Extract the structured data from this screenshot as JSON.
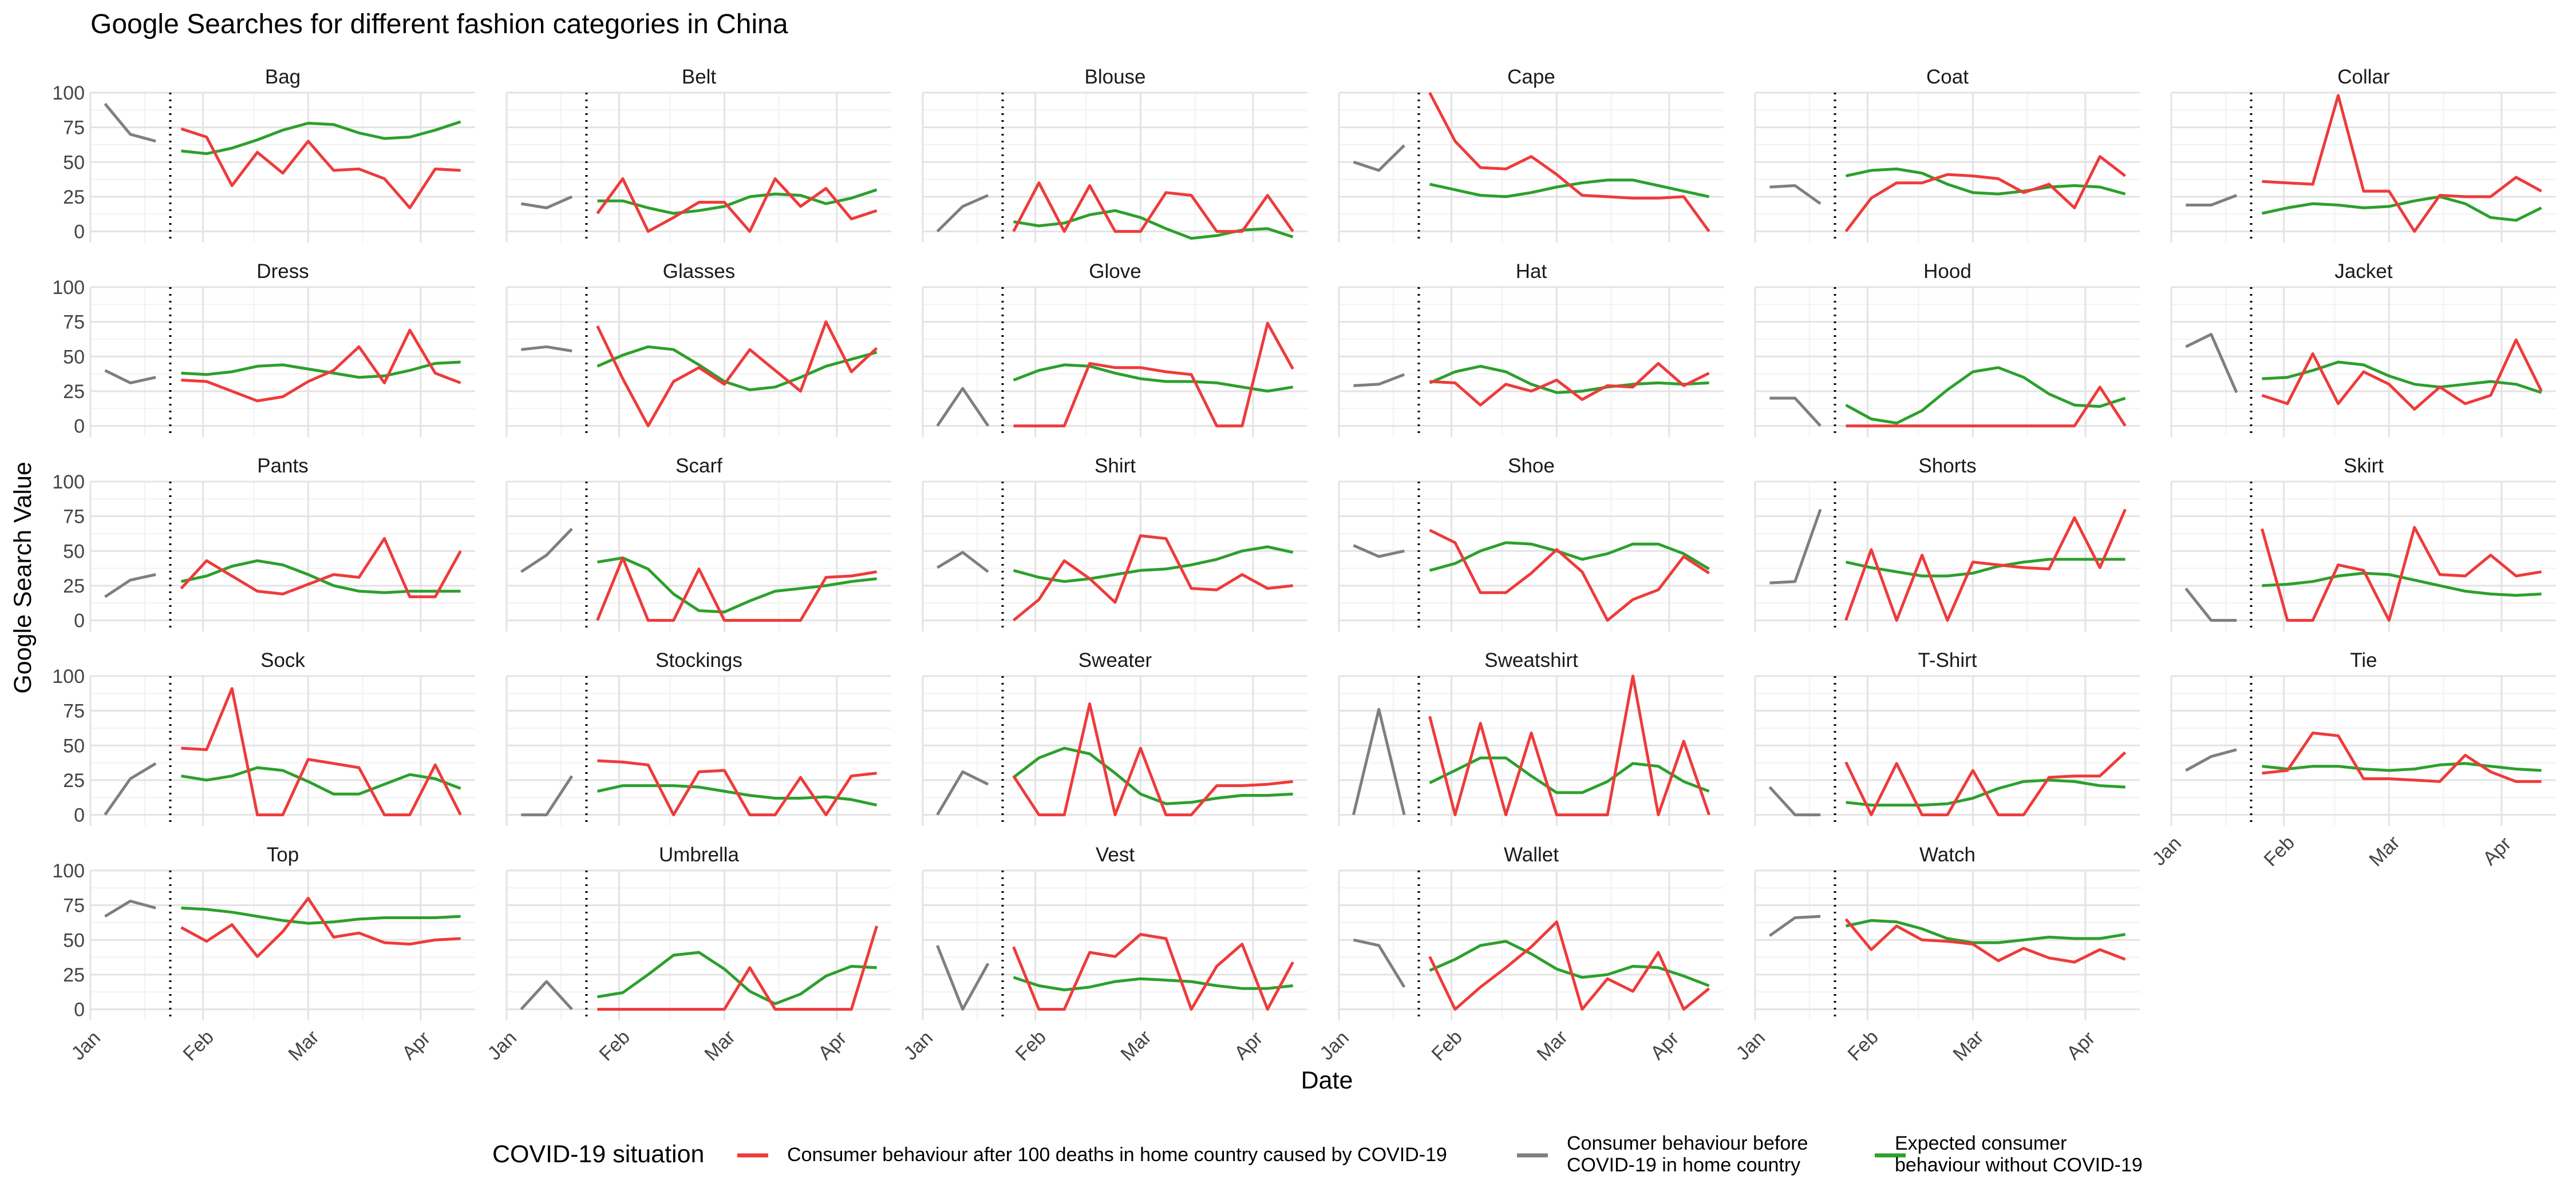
{
  "chart_data": {
    "type": "line",
    "title": "Google Searches for different fashion categories in China",
    "xlabel": "Date",
    "ylabel": "Google Search Value",
    "ylim": [
      -8,
      100
    ],
    "y_ticks": [
      "0",
      "25",
      "50",
      "75",
      "100"
    ],
    "x_ticks": [
      "Jan",
      "Feb",
      "Mar",
      "Apr"
    ],
    "grid": true,
    "legend_position": "bottom",
    "legend_title": "COVID-19 situation",
    "legend_items": [
      {
        "label": "Consumer behaviour after 100 deaths in home country caused by COVID-19",
        "color": "#EE3B3B"
      },
      {
        "label": "Consumer behaviour before\nCOVID-19 in home country",
        "color": "#7F7F7F"
      },
      {
        "label": "Expected consumer\nbehaviour without COVID-19",
        "color": "#2CA02C"
      }
    ],
    "colors": {
      "after": "#EE3B3B",
      "before": "#7F7F7F",
      "expected": "#2CA02C"
    },
    "pre_dates": [
      "2020-01-05",
      "2020-01-12",
      "2020-01-19"
    ],
    "event_date": "2020-01-23",
    "post_dates": [
      "2020-01-26",
      "2020-02-02",
      "2020-02-09",
      "2020-02-16",
      "2020-02-23",
      "2020-03-01",
      "2020-03-08",
      "2020-03-15",
      "2020-03-22",
      "2020-03-29",
      "2020-04-05",
      "2020-04-12"
    ],
    "panels": [
      {
        "name": "Bag",
        "before": [
          92,
          70,
          65
        ],
        "after": [
          74,
          68,
          33,
          57,
          42,
          65,
          44,
          45,
          38,
          17,
          45,
          44
        ],
        "expected": [
          58,
          56,
          60,
          66,
          73,
          78,
          77,
          71,
          67,
          68,
          73,
          79
        ]
      },
      {
        "name": "Belt",
        "before": [
          20,
          17,
          25
        ],
        "after": [
          13,
          38,
          0,
          10,
          21,
          21,
          0,
          38,
          18,
          31,
          9,
          15
        ],
        "expected": [
          22,
          22,
          17,
          13,
          15,
          18,
          25,
          27,
          26,
          20,
          24,
          30
        ]
      },
      {
        "name": "Blouse",
        "before": [
          0,
          18,
          26
        ],
        "after": [
          0,
          35,
          0,
          33,
          0,
          0,
          28,
          26,
          0,
          0,
          26,
          0
        ],
        "expected": [
          7,
          4,
          6,
          12,
          15,
          10,
          2,
          -5,
          -3,
          1,
          2,
          -4
        ]
      },
      {
        "name": "Cape",
        "before": [
          50,
          44,
          62
        ],
        "after": [
          100,
          65,
          46,
          45,
          54,
          41,
          26,
          25,
          24,
          24,
          25,
          0
        ],
        "expected": [
          34,
          30,
          26,
          25,
          28,
          32,
          35,
          37,
          37,
          33,
          29,
          25
        ]
      },
      {
        "name": "Coat",
        "before": [
          32,
          33,
          20
        ],
        "after": [
          0,
          24,
          35,
          35,
          41,
          40,
          38,
          28,
          34,
          17,
          54,
          40
        ],
        "expected": [
          40,
          44,
          45,
          42,
          34,
          28,
          27,
          29,
          32,
          33,
          32,
          27
        ]
      },
      {
        "name": "Collar",
        "before": [
          19,
          19,
          26
        ],
        "after": [
          36,
          35,
          34,
          98,
          29,
          29,
          0,
          26,
          25,
          25,
          39,
          29
        ],
        "expected": [
          13,
          17,
          20,
          19,
          17,
          18,
          22,
          25,
          20,
          10,
          8,
          17
        ]
      },
      {
        "name": "Dress",
        "before": [
          40,
          31,
          35
        ],
        "after": [
          33,
          32,
          25,
          18,
          21,
          32,
          40,
          57,
          31,
          69,
          38,
          31
        ],
        "expected": [
          38,
          37,
          39,
          43,
          44,
          41,
          38,
          35,
          36,
          40,
          45,
          46
        ]
      },
      {
        "name": "Glasses",
        "before": [
          55,
          57,
          54
        ],
        "after": [
          72,
          34,
          0,
          32,
          42,
          30,
          55,
          40,
          25,
          75,
          39,
          56
        ],
        "expected": [
          43,
          51,
          57,
          55,
          44,
          32,
          26,
          28,
          35,
          43,
          48,
          53
        ]
      },
      {
        "name": "Glove",
        "before": [
          0,
          27,
          0
        ],
        "after": [
          0,
          0,
          0,
          45,
          42,
          42,
          39,
          37,
          0,
          0,
          74,
          41
        ],
        "expected": [
          33,
          40,
          44,
          43,
          38,
          34,
          32,
          32,
          31,
          28,
          25,
          28
        ]
      },
      {
        "name": "Hat",
        "before": [
          29,
          30,
          37
        ],
        "after": [
          32,
          31,
          15,
          30,
          25,
          33,
          19,
          29,
          28,
          45,
          29,
          38
        ],
        "expected": [
          31,
          39,
          43,
          39,
          30,
          24,
          25,
          28,
          30,
          31,
          30,
          31
        ]
      },
      {
        "name": "Hood",
        "before": [
          20,
          20,
          0
        ],
        "after": [
          0,
          0,
          0,
          0,
          0,
          0,
          0,
          0,
          0,
          0,
          28,
          0
        ],
        "expected": [
          15,
          5,
          2,
          11,
          26,
          39,
          42,
          35,
          23,
          15,
          14,
          20
        ]
      },
      {
        "name": "Jacket",
        "before": [
          57,
          66,
          24
        ],
        "after": [
          22,
          16,
          52,
          16,
          39,
          30,
          12,
          28,
          16,
          22,
          62,
          25
        ],
        "expected": [
          34,
          35,
          40,
          46,
          44,
          36,
          30,
          28,
          30,
          32,
          30,
          24
        ]
      },
      {
        "name": "Pants",
        "before": [
          17,
          29,
          33
        ],
        "after": [
          23,
          43,
          32,
          21,
          19,
          26,
          33,
          31,
          59,
          17,
          17,
          50
        ],
        "expected": [
          28,
          32,
          39,
          43,
          40,
          33,
          25,
          21,
          20,
          21,
          21,
          21
        ]
      },
      {
        "name": "Scarf",
        "before": [
          35,
          47,
          66
        ],
        "after": [
          0,
          45,
          0,
          0,
          37,
          0,
          0,
          0,
          0,
          31,
          32,
          35
        ],
        "expected": [
          42,
          45,
          37,
          19,
          7,
          6,
          14,
          21,
          23,
          25,
          28,
          30
        ]
      },
      {
        "name": "Shirt",
        "before": [
          38,
          49,
          35
        ],
        "after": [
          0,
          15,
          43,
          30,
          13,
          61,
          59,
          23,
          22,
          33,
          23,
          25
        ],
        "expected": [
          36,
          31,
          28,
          30,
          33,
          36,
          37,
          40,
          44,
          50,
          53,
          49
        ]
      },
      {
        "name": "Shoe",
        "before": [
          54,
          46,
          50
        ],
        "after": [
          65,
          56,
          20,
          20,
          34,
          51,
          35,
          0,
          15,
          22,
          46,
          34
        ],
        "expected": [
          36,
          41,
          50,
          56,
          55,
          50,
          44,
          48,
          55,
          55,
          48,
          37
        ]
      },
      {
        "name": "Shorts",
        "before": [
          27,
          28,
          80
        ],
        "after": [
          0,
          51,
          0,
          47,
          0,
          42,
          40,
          38,
          37,
          74,
          38,
          80
        ],
        "expected": [
          42,
          38,
          35,
          32,
          32,
          34,
          39,
          42,
          44,
          44,
          44,
          44
        ]
      },
      {
        "name": "Skirt",
        "before": [
          23,
          0,
          0
        ],
        "after": [
          66,
          0,
          0,
          40,
          36,
          0,
          67,
          33,
          32,
          47,
          32,
          35
        ],
        "expected": [
          25,
          26,
          28,
          32,
          34,
          33,
          29,
          25,
          21,
          19,
          18,
          19
        ]
      },
      {
        "name": "Sock",
        "before": [
          0,
          26,
          37
        ],
        "after": [
          48,
          47,
          91,
          0,
          0,
          40,
          37,
          34,
          0,
          0,
          36,
          0
        ],
        "expected": [
          28,
          25,
          28,
          34,
          32,
          24,
          15,
          15,
          22,
          29,
          26,
          19
        ]
      },
      {
        "name": "Stockings",
        "before": [
          0,
          0,
          28
        ],
        "after": [
          39,
          38,
          36,
          0,
          31,
          32,
          0,
          0,
          27,
          0,
          28,
          30
        ],
        "expected": [
          17,
          21,
          21,
          21,
          20,
          17,
          14,
          12,
          12,
          13,
          11,
          7
        ]
      },
      {
        "name": "Sweater",
        "before": [
          0,
          31,
          22
        ],
        "after": [
          28,
          0,
          0,
          80,
          0,
          48,
          0,
          0,
          21,
          21,
          22,
          24
        ],
        "expected": [
          27,
          41,
          48,
          44,
          30,
          15,
          8,
          9,
          12,
          14,
          14,
          15
        ]
      },
      {
        "name": "Sweatshirt",
        "before": [
          0,
          76,
          0
        ],
        "after": [
          71,
          0,
          66,
          0,
          59,
          0,
          0,
          0,
          100,
          0,
          53,
          0
        ],
        "expected": [
          23,
          32,
          41,
          41,
          28,
          16,
          16,
          24,
          37,
          35,
          24,
          17
        ]
      },
      {
        "name": "T-Shirt",
        "before": [
          20,
          0,
          0
        ],
        "after": [
          38,
          0,
          37,
          0,
          0,
          32,
          0,
          0,
          27,
          28,
          28,
          45
        ],
        "expected": [
          9,
          7,
          7,
          7,
          8,
          12,
          19,
          24,
          25,
          24,
          21,
          20
        ]
      },
      {
        "name": "Tie",
        "before": [
          32,
          42,
          47
        ],
        "after": [
          30,
          32,
          59,
          57,
          26,
          26,
          25,
          24,
          43,
          31,
          24,
          24
        ],
        "expected": [
          35,
          33,
          35,
          35,
          33,
          32,
          33,
          36,
          37,
          35,
          33,
          32
        ]
      },
      {
        "name": "Top",
        "before": [
          67,
          78,
          73
        ],
        "after": [
          59,
          49,
          61,
          38,
          56,
          80,
          52,
          55,
          48,
          47,
          50,
          51
        ],
        "expected": [
          73,
          72,
          70,
          67,
          64,
          62,
          63,
          65,
          66,
          66,
          66,
          67
        ]
      },
      {
        "name": "Umbrella",
        "before": [
          0,
          20,
          0
        ],
        "after": [
          0,
          0,
          0,
          0,
          0,
          0,
          30,
          0,
          0,
          0,
          0,
          60
        ],
        "expected": [
          9,
          12,
          25,
          39,
          41,
          29,
          13,
          4,
          11,
          24,
          31,
          30
        ]
      },
      {
        "name": "Vest",
        "before": [
          46,
          0,
          33
        ],
        "after": [
          45,
          0,
          0,
          41,
          38,
          54,
          51,
          0,
          31,
          47,
          0,
          34
        ],
        "expected": [
          23,
          17,
          14,
          16,
          20,
          22,
          21,
          20,
          17,
          15,
          15,
          17
        ]
      },
      {
        "name": "Wallet",
        "before": [
          50,
          46,
          16
        ],
        "after": [
          38,
          0,
          16,
          30,
          45,
          63,
          0,
          22,
          13,
          41,
          0,
          15
        ],
        "expected": [
          28,
          36,
          46,
          49,
          40,
          29,
          23,
          25,
          31,
          30,
          24,
          17
        ]
      },
      {
        "name": "Watch",
        "before": [
          53,
          66,
          67
        ],
        "after": [
          65,
          43,
          60,
          50,
          49,
          47,
          35,
          44,
          37,
          34,
          43,
          36
        ],
        "expected": [
          60,
          64,
          63,
          58,
          51,
          48,
          48,
          50,
          52,
          51,
          51,
          54
        ]
      }
    ]
  }
}
